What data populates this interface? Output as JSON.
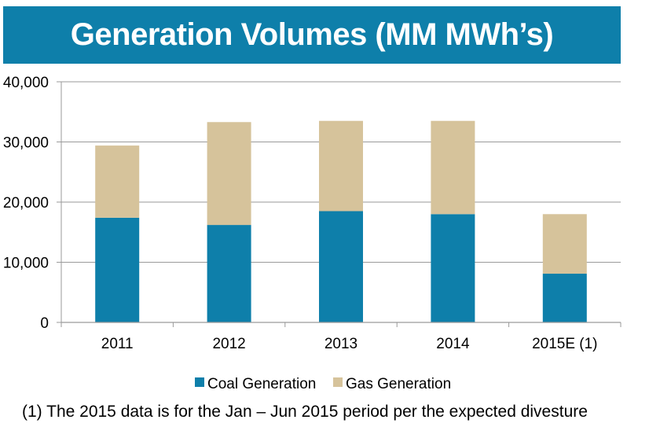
{
  "title": "Generation Volumes (MM MWh’s)",
  "footnote": "(1) The 2015 data is for the Jan – Jun 2015 period per the expected divesture",
  "colors": {
    "banner": "#0e7faa",
    "coal": "#0e7faa",
    "gas": "#d6c39b",
    "grid": "#9a9a9a"
  },
  "chart_data": {
    "type": "bar",
    "stacked": true,
    "categories": [
      "2011",
      "2012",
      "2013",
      "2014",
      "2015E (1)"
    ],
    "series": [
      {
        "name": "Coal Generation",
        "values": [
          17400,
          16200,
          18500,
          18000,
          8100
        ]
      },
      {
        "name": "Gas Generation",
        "values": [
          12000,
          17100,
          15000,
          15500,
          9900
        ]
      }
    ],
    "ylim": [
      0,
      40000
    ],
    "yticks": [
      0,
      10000,
      20000,
      30000,
      40000
    ],
    "ytick_labels": [
      "0",
      "10,000",
      "20,000",
      "30,000",
      "40,000"
    ],
    "grid": true,
    "legend_position": "bottom"
  }
}
